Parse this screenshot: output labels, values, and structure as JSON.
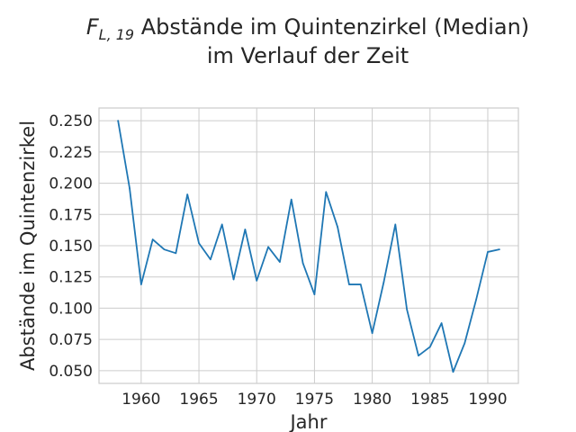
{
  "chart_data": {
    "type": "line",
    "title": {
      "symbol": "F",
      "subscript": "L, 19",
      "line1_rest": " Abstände im Quintenzirkel (Median)",
      "line2": "im Verlauf der Zeit"
    },
    "xlabel": "Jahr",
    "ylabel": "Abstände im Quintenzirkel",
    "xlim": [
      1956.35,
      1992.65
    ],
    "ylim": [
      0.0398,
      0.2602
    ],
    "x_ticks": [
      1960,
      1965,
      1970,
      1975,
      1980,
      1985,
      1990
    ],
    "x_tick_labels": [
      "1960",
      "1965",
      "1970",
      "1975",
      "1980",
      "1985",
      "1990"
    ],
    "y_ticks": [
      0.05,
      0.075,
      0.1,
      0.125,
      0.15,
      0.175,
      0.2,
      0.225,
      0.25
    ],
    "y_tick_labels": [
      "0.050",
      "0.075",
      "0.100",
      "0.125",
      "0.150",
      "0.175",
      "0.200",
      "0.225",
      "0.250"
    ],
    "grid": true,
    "colors": {
      "series": "#1f77b4",
      "grid": "#cccccc",
      "text": "#262626"
    },
    "series": [
      {
        "x": [
          1958,
          1959,
          1960,
          1961,
          1962,
          1963,
          1964,
          1965,
          1966,
          1967,
          1968,
          1969,
          1970,
          1971,
          1972,
          1973,
          1974,
          1975,
          1976,
          1977,
          1978,
          1979,
          1980,
          1981,
          1982,
          1983,
          1984,
          1985,
          1986,
          1987,
          1988,
          1989,
          1990,
          1991
        ],
        "values": [
          0.25,
          0.196,
          0.119,
          0.155,
          0.147,
          0.144,
          0.191,
          0.152,
          0.139,
          0.167,
          0.123,
          0.163,
          0.122,
          0.149,
          0.137,
          0.187,
          0.136,
          0.111,
          0.193,
          0.165,
          0.119,
          0.119,
          0.08,
          0.121,
          0.167,
          0.099,
          0.062,
          0.069,
          0.088,
          0.049,
          0.072,
          0.107,
          0.145,
          0.147
        ]
      }
    ]
  }
}
